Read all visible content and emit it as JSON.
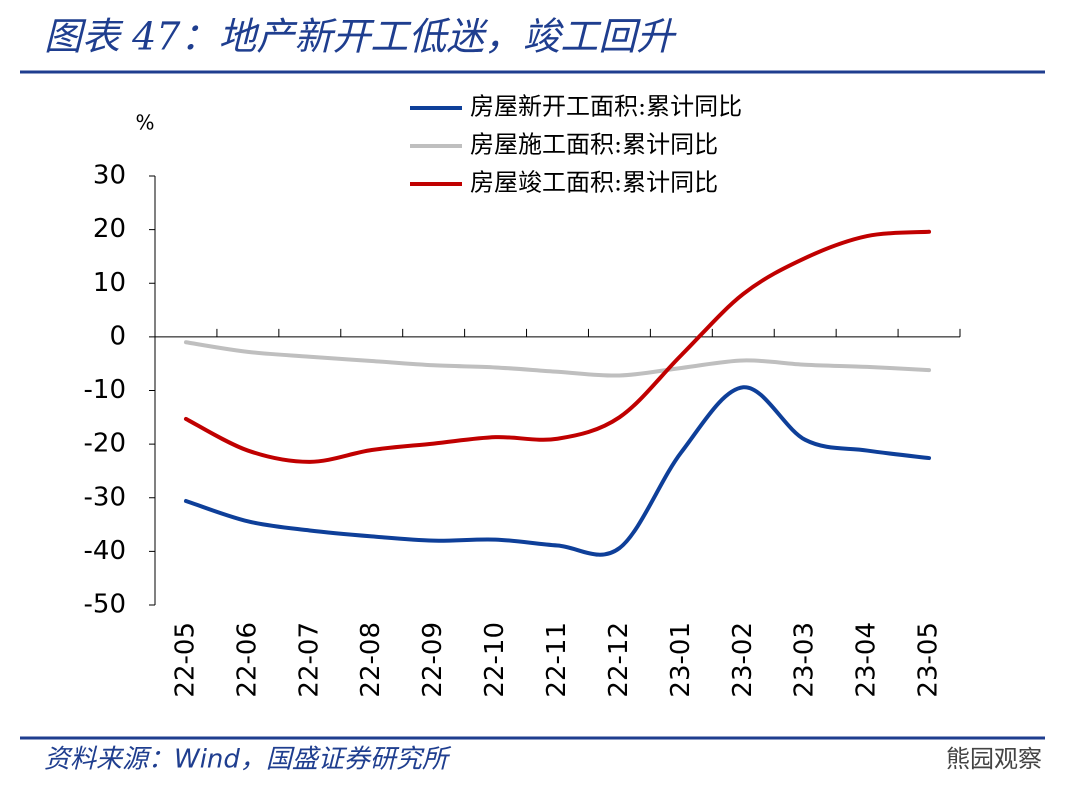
{
  "chart_data": {
    "type": "line",
    "title": "图表 47：地产新开工低迷，竣工回升",
    "y_label": "%",
    "source": "资料来源：Wind，国盛证券研究所",
    "watermark": "熊园观察",
    "categories": [
      "22-05",
      "22-06",
      "22-07",
      "22-08",
      "22-09",
      "22-10",
      "22-11",
      "22-12",
      "23-01",
      "23-02",
      "23-03",
      "23-04",
      "23-05"
    ],
    "series": [
      {
        "name": "房屋新开工面积:累计同比",
        "color": "#0e3f99",
        "values": [
          -30.6,
          -34.4,
          -36.1,
          -37.2,
          -38.0,
          -37.8,
          -38.9,
          -39.4,
          -21.5,
          -9.4,
          -19.2,
          -21.2,
          -22.6
        ]
      },
      {
        "name": "房屋施工面积:累计同比",
        "color": "#bfbfbf",
        "values": [
          -1.0,
          -2.8,
          -3.7,
          -4.5,
          -5.3,
          -5.7,
          -6.5,
          -7.2,
          -5.8,
          -4.4,
          -5.2,
          -5.6,
          -6.2
        ]
      },
      {
        "name": "房屋竣工面积:累计同比",
        "color": "#c00000",
        "values": [
          -15.3,
          -21.2,
          -23.3,
          -21.1,
          -19.9,
          -18.7,
          -19.0,
          -15.0,
          -3.4,
          8.0,
          14.7,
          18.8,
          19.6
        ]
      }
    ],
    "ylim": [
      -50,
      30
    ],
    "yticks": [
      -50,
      -40,
      -30,
      -20,
      -10,
      0,
      10,
      20,
      30
    ],
    "grid": false,
    "legend": "top"
  }
}
